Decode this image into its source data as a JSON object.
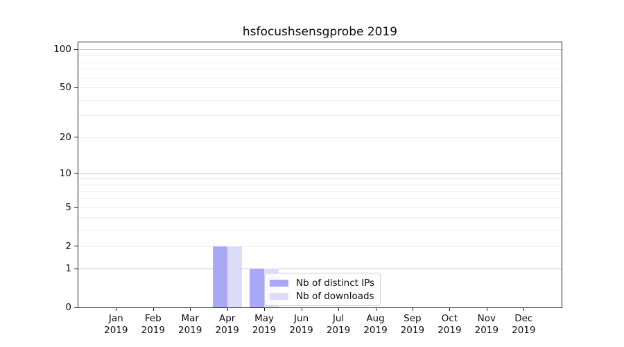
{
  "figure": {
    "title": "hsfocushsensgprobe 2019"
  },
  "chart_data": {
    "type": "bar",
    "title": "hsfocushsensgprobe 2019",
    "categories": [
      "Jan 2019",
      "Feb 2019",
      "Mar 2019",
      "Apr 2019",
      "May 2019",
      "Jun 2019",
      "Jul 2019",
      "Aug 2019",
      "Sep 2019",
      "Oct 2019",
      "Nov 2019",
      "Dec 2019"
    ],
    "series": [
      {
        "name": "Nb of distinct IPs",
        "color": "#a8a8f6",
        "values": [
          0,
          0,
          0,
          2,
          1,
          0,
          0,
          0,
          0,
          0,
          0,
          0
        ]
      },
      {
        "name": "Nb of downloads",
        "color": "#dcdcf9",
        "values": [
          0,
          0,
          0,
          2,
          1,
          0,
          0,
          0,
          0,
          0,
          0,
          0
        ]
      }
    ],
    "xlabel": "",
    "ylabel": "",
    "yscale": "log1p",
    "ylim": [
      0,
      114
    ],
    "yticks": [
      0,
      1,
      2,
      5,
      10,
      20,
      50,
      100
    ],
    "grid_major": [
      1,
      10,
      100
    ],
    "grid_minor": [
      2,
      3,
      4,
      6,
      7,
      8,
      9,
      5,
      20,
      30,
      40,
      50,
      60,
      70,
      80,
      90
    ],
    "grid": "on",
    "legend_position": "inside-bottom-center"
  }
}
